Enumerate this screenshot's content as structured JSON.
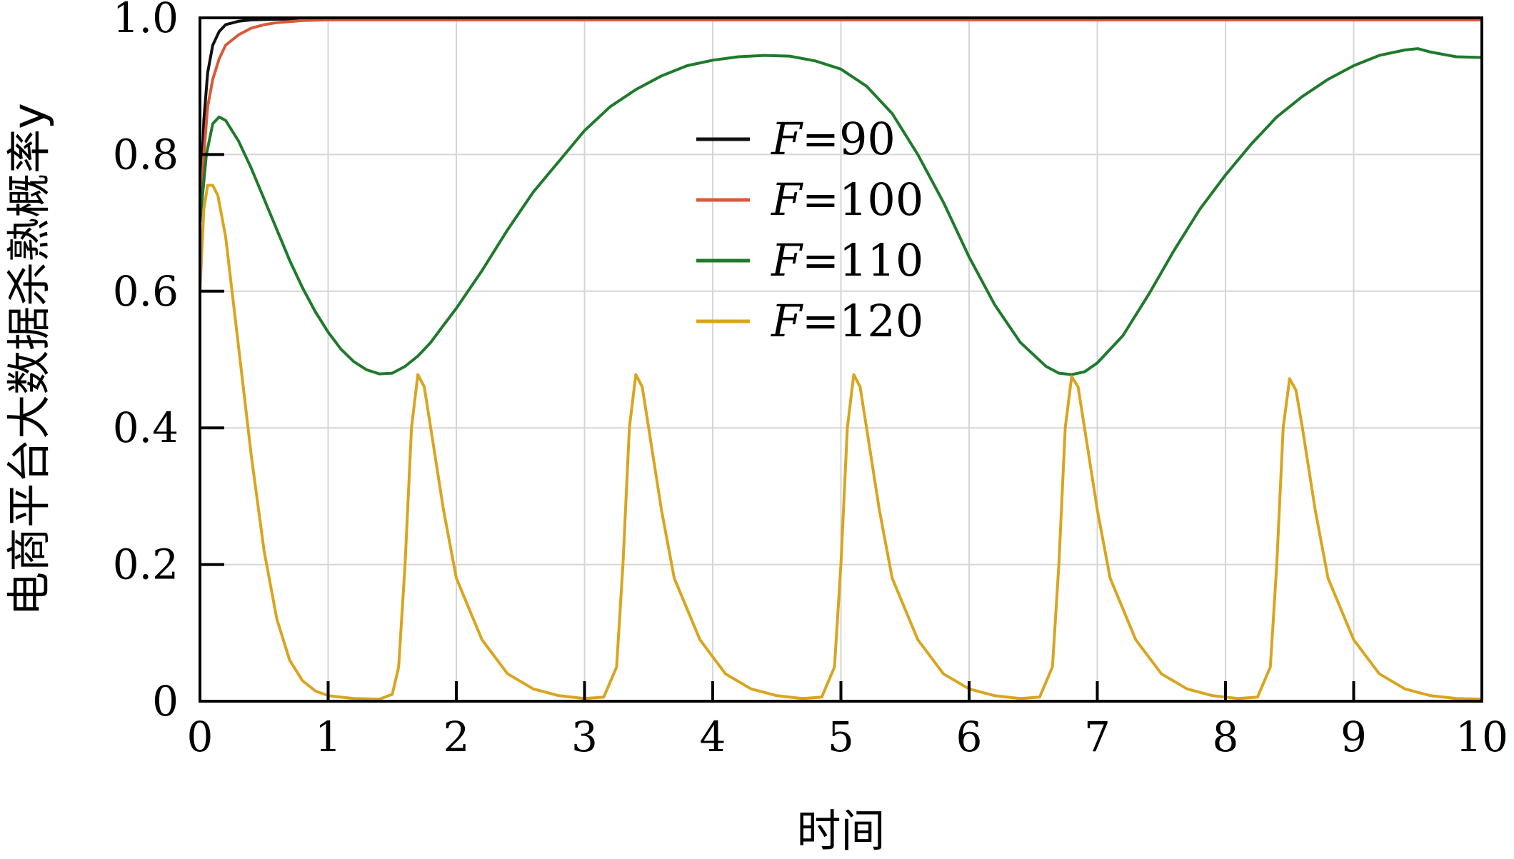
{
  "chart_data": {
    "type": "line",
    "xlabel": "时间",
    "ylabel": "电商平台大数据杀熟概率y",
    "xlim": [
      0,
      10
    ],
    "ylim": [
      0,
      1.0
    ],
    "xticks": [
      "0",
      "1",
      "2",
      "3",
      "4",
      "5",
      "6",
      "7",
      "8",
      "9",
      "10"
    ],
    "yticks": [
      "0",
      "0.2",
      "0.4",
      "0.6",
      "0.8",
      "1.0"
    ],
    "grid": true,
    "legend_position": "center",
    "legend_symbol": "F",
    "series": [
      {
        "name": "F=90",
        "legend_value": "=90",
        "color": "#111111",
        "x": [
          0,
          0.03,
          0.06,
          0.1,
          0.15,
          0.2,
          0.3,
          0.4,
          0.6,
          0.8,
          1.0,
          2,
          3,
          4,
          5,
          6,
          7,
          8,
          9,
          10
        ],
        "y": [
          0.7,
          0.85,
          0.92,
          0.96,
          0.98,
          0.99,
          0.995,
          0.997,
          0.998,
          0.998,
          0.998,
          0.998,
          0.998,
          0.998,
          0.998,
          0.998,
          0.998,
          0.998,
          0.998,
          0.998
        ]
      },
      {
        "name": "F=100",
        "legend_value": "=100",
        "color": "#d9593a",
        "x": [
          0,
          0.03,
          0.06,
          0.1,
          0.15,
          0.2,
          0.3,
          0.4,
          0.5,
          0.6,
          0.8,
          1.0,
          2,
          3,
          4,
          5,
          6,
          7,
          8,
          9,
          10
        ],
        "y": [
          0.7,
          0.8,
          0.87,
          0.91,
          0.94,
          0.96,
          0.975,
          0.985,
          0.99,
          0.993,
          0.996,
          0.997,
          0.997,
          0.997,
          0.997,
          0.997,
          0.997,
          0.997,
          0.997,
          0.997,
          0.997
        ]
      },
      {
        "name": "F=110",
        "legend_value": "=110",
        "color": "#1f7a2c",
        "x": [
          0,
          0.05,
          0.1,
          0.15,
          0.2,
          0.3,
          0.4,
          0.5,
          0.6,
          0.7,
          0.8,
          0.9,
          1.0,
          1.1,
          1.2,
          1.3,
          1.4,
          1.5,
          1.6,
          1.7,
          1.8,
          1.9,
          2.0,
          2.2,
          2.4,
          2.6,
          2.8,
          3.0,
          3.2,
          3.4,
          3.6,
          3.8,
          4.0,
          4.2,
          4.4,
          4.6,
          4.8,
          5.0,
          5.2,
          5.4,
          5.6,
          5.8,
          6.0,
          6.2,
          6.4,
          6.6,
          6.7,
          6.8,
          6.9,
          7.0,
          7.2,
          7.4,
          7.6,
          7.8,
          8.0,
          8.2,
          8.4,
          8.6,
          8.8,
          9.0,
          9.2,
          9.4,
          9.5,
          9.6,
          9.8,
          10.0
        ],
        "y": [
          0.7,
          0.8,
          0.845,
          0.855,
          0.85,
          0.82,
          0.78,
          0.735,
          0.69,
          0.645,
          0.605,
          0.57,
          0.54,
          0.515,
          0.497,
          0.485,
          0.479,
          0.48,
          0.49,
          0.505,
          0.525,
          0.55,
          0.575,
          0.63,
          0.69,
          0.745,
          0.79,
          0.835,
          0.87,
          0.895,
          0.915,
          0.93,
          0.938,
          0.943,
          0.945,
          0.944,
          0.937,
          0.925,
          0.9,
          0.86,
          0.8,
          0.73,
          0.65,
          0.58,
          0.525,
          0.49,
          0.48,
          0.478,
          0.482,
          0.495,
          0.535,
          0.595,
          0.66,
          0.72,
          0.77,
          0.815,
          0.855,
          0.885,
          0.91,
          0.93,
          0.945,
          0.953,
          0.955,
          0.95,
          0.943,
          0.942
        ]
      },
      {
        "name": "F=120",
        "legend_value": "=120",
        "color": "#d9a520",
        "x": [
          0,
          0.03,
          0.06,
          0.1,
          0.14,
          0.2,
          0.3,
          0.4,
          0.5,
          0.6,
          0.7,
          0.8,
          0.9,
          1.0,
          1.2,
          1.4,
          1.5,
          1.55,
          1.6,
          1.65,
          1.7,
          1.75,
          1.8,
          1.9,
          2.0,
          2.2,
          2.4,
          2.6,
          2.8,
          3.0,
          3.15,
          3.25,
          3.3,
          3.35,
          3.4,
          3.45,
          3.5,
          3.6,
          3.7,
          3.9,
          4.1,
          4.3,
          4.5,
          4.7,
          4.85,
          4.95,
          5.0,
          5.05,
          5.1,
          5.15,
          5.2,
          5.3,
          5.4,
          5.6,
          5.8,
          6.0,
          6.2,
          6.4,
          6.55,
          6.65,
          6.7,
          6.75,
          6.8,
          6.85,
          6.9,
          7.0,
          7.1,
          7.3,
          7.5,
          7.7,
          7.9,
          8.1,
          8.25,
          8.35,
          8.4,
          8.45,
          8.5,
          8.55,
          8.6,
          8.7,
          8.8,
          9.0,
          9.2,
          9.4,
          9.6,
          9.8,
          10.0
        ],
        "y": [
          0.6,
          0.72,
          0.755,
          0.755,
          0.74,
          0.68,
          0.52,
          0.36,
          0.22,
          0.12,
          0.06,
          0.03,
          0.015,
          0.008,
          0.004,
          0.003,
          0.01,
          0.05,
          0.2,
          0.4,
          0.478,
          0.46,
          0.4,
          0.28,
          0.18,
          0.09,
          0.04,
          0.018,
          0.008,
          0.004,
          0.006,
          0.05,
          0.2,
          0.4,
          0.478,
          0.46,
          0.4,
          0.28,
          0.18,
          0.09,
          0.04,
          0.018,
          0.008,
          0.004,
          0.006,
          0.05,
          0.2,
          0.4,
          0.478,
          0.46,
          0.4,
          0.28,
          0.18,
          0.09,
          0.04,
          0.018,
          0.008,
          0.004,
          0.006,
          0.05,
          0.2,
          0.4,
          0.475,
          0.46,
          0.4,
          0.28,
          0.18,
          0.09,
          0.04,
          0.018,
          0.008,
          0.004,
          0.006,
          0.05,
          0.2,
          0.4,
          0.472,
          0.455,
          0.4,
          0.28,
          0.18,
          0.09,
          0.04,
          0.018,
          0.008,
          0.004,
          0.003
        ]
      }
    ]
  }
}
